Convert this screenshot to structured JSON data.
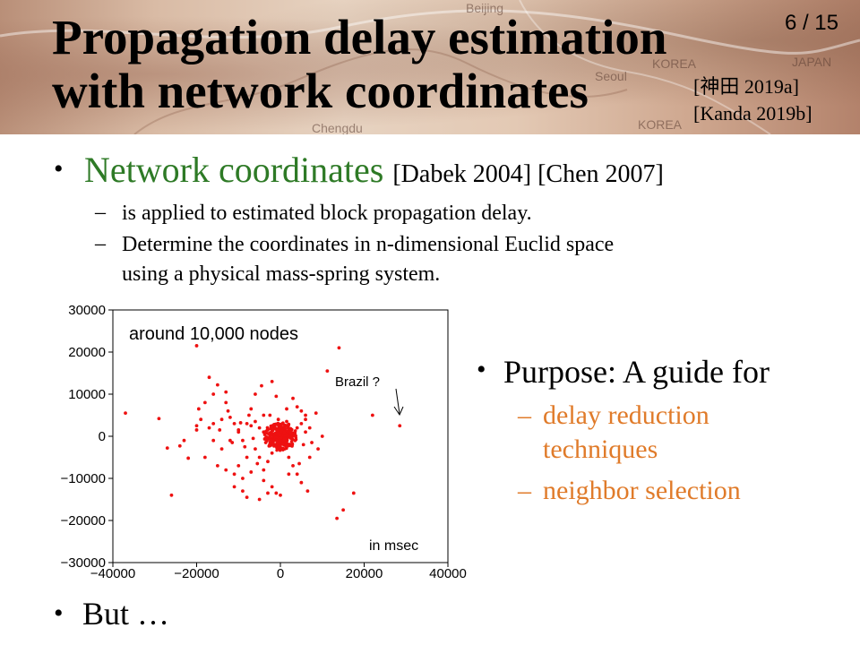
{
  "slide": {
    "title_line1": "Propagation delay estimation",
    "title_line2": "with network coordinates",
    "page_number": "6 / 15",
    "citation1": "[神田 2019a]",
    "citation2": "[Kanda 2019b]",
    "map_labels": [
      "Beijing",
      "KOREA",
      "Seoul",
      "JAPAN",
      "Chengdu",
      "KOREA"
    ]
  },
  "bullets": {
    "main_term": "Network coordinates",
    "main_refs": "[Dabek 2004] [Chen 2007]",
    "sub1": "is applied  to estimated block propagation  delay.",
    "sub2_line1": "Determine the coordinates  in n-dimensional  Euclid space",
    "sub2_line2": "using a physical  mass-spring  system.",
    "purpose": "Purpose: A guide for",
    "purpose_sub1_line1": "delay reduction",
    "purpose_sub1_line2": "techniques",
    "purpose_sub2": "neighbor selection",
    "but": "But …",
    "dash": "–",
    "bullet_dot": "•"
  },
  "chart_data": {
    "type": "scatter",
    "title": "",
    "xlabel": "",
    "ylabel": "",
    "xlim": [
      -40000,
      40000
    ],
    "ylim": [
      -30000,
      30000
    ],
    "xticks": [
      "−40000",
      "−20000",
      "0",
      "20000",
      "40000"
    ],
    "yticks": [
      "30000",
      "20000",
      "10000",
      "0",
      "−10000",
      "−20000",
      "−30000"
    ],
    "xtick_values": [
      -40000,
      -20000,
      0,
      20000,
      40000
    ],
    "ytick_values": [
      30000,
      20000,
      10000,
      0,
      -10000,
      -20000,
      -30000
    ],
    "color": "#ee1111",
    "grid": false,
    "annotations": {
      "nodes": "around 10,000 nodes",
      "brazil": "Brazil ?",
      "unit": "in msec"
    },
    "points": [
      [
        -20000,
        21500
      ],
      [
        14000,
        21000
      ],
      [
        11200,
        15500
      ],
      [
        -37000,
        5500
      ],
      [
        -29000,
        4200
      ],
      [
        -27000,
        -2800
      ],
      [
        -24000,
        -2300
      ],
      [
        -22000,
        -5200
      ],
      [
        -20000,
        1500
      ],
      [
        -19000,
        4000
      ],
      [
        -17000,
        14000
      ],
      [
        -15000,
        12200
      ],
      [
        -13000,
        10500
      ],
      [
        -12500,
        6000
      ],
      [
        -11000,
        3000
      ],
      [
        -10000,
        1000
      ],
      [
        -9000,
        -1000
      ],
      [
        -8000,
        3000
      ],
      [
        -7000,
        2500
      ],
      [
        -6000,
        3500
      ],
      [
        -5000,
        2000
      ],
      [
        -4000,
        1000
      ],
      [
        -3000,
        1500
      ],
      [
        -2000,
        2200
      ],
      [
        -1000,
        800
      ],
      [
        0,
        0
      ],
      [
        1000,
        500
      ],
      [
        2000,
        1000
      ],
      [
        3000,
        800
      ],
      [
        4000,
        2000
      ],
      [
        5000,
        3000
      ],
      [
        6000,
        4000
      ],
      [
        -6000,
        -3000
      ],
      [
        -5000,
        -5000
      ],
      [
        -4000,
        -8000
      ],
      [
        -3000,
        -6000
      ],
      [
        -2000,
        -4000
      ],
      [
        -1000,
        -2000
      ],
      [
        1000,
        -3000
      ],
      [
        2000,
        -5000
      ],
      [
        3000,
        -7000
      ],
      [
        4000,
        -9000
      ],
      [
        -2000,
        -12000
      ],
      [
        -3000,
        -13500
      ],
      [
        -5000,
        -15000
      ],
      [
        -8000,
        -14500
      ],
      [
        -11000,
        -12000
      ],
      [
        -13000,
        -8000
      ],
      [
        -15000,
        -7000
      ],
      [
        -18000,
        -5000
      ],
      [
        -26000,
        -14000
      ],
      [
        -23000,
        -1000
      ],
      [
        -10000,
        -7000
      ],
      [
        -9000,
        -10000
      ],
      [
        0,
        -14000
      ],
      [
        -1000,
        -13500
      ],
      [
        2000,
        -9000
      ],
      [
        5000,
        -11000
      ],
      [
        7000,
        -5000
      ],
      [
        7000,
        2000
      ],
      [
        6000,
        5000
      ],
      [
        5000,
        6000
      ],
      [
        4000,
        7000
      ],
      [
        3000,
        9000
      ],
      [
        -1000,
        9500
      ],
      [
        -6000,
        10000
      ],
      [
        -14000,
        4000
      ],
      [
        -16000,
        3000
      ],
      [
        -18000,
        8000
      ],
      [
        -20000,
        2500
      ],
      [
        17500,
        -13500
      ],
      [
        15000,
        -17500
      ],
      [
        13500,
        -19500
      ],
      [
        22000,
        5000
      ],
      [
        28500,
        2500
      ],
      [
        -12000,
        4500
      ],
      [
        -7500,
        5000
      ],
      [
        -4000,
        5000
      ],
      [
        1500,
        6500
      ],
      [
        2500,
        -2000
      ],
      [
        3500,
        -1000
      ],
      [
        -3500,
        -1500
      ],
      [
        -1500,
        -1000
      ],
      [
        500,
        3000
      ],
      [
        1500,
        3500
      ],
      [
        -500,
        4000
      ],
      [
        -2500,
        5000
      ],
      [
        -8500,
        -2500
      ],
      [
        -11500,
        -1500
      ],
      [
        -14000,
        -3000
      ],
      [
        -16000,
        -1000
      ],
      [
        -10000,
        1500
      ],
      [
        -6500,
        -500
      ],
      [
        -300,
        -600
      ],
      [
        800,
        -1200
      ],
      [
        -1200,
        -300
      ],
      [
        1200,
        200
      ],
      [
        300,
        1200
      ],
      [
        -800,
        1400
      ],
      [
        2300,
        1700
      ],
      [
        -2200,
        300
      ],
      [
        600,
        -1800
      ],
      [
        -1800,
        -1700
      ],
      [
        2800,
        -600
      ],
      [
        -2800,
        600
      ],
      [
        1800,
        2600
      ],
      [
        -1500,
        2800
      ],
      [
        400,
        2100
      ],
      [
        -400,
        -2400
      ],
      [
        1300,
        -2300
      ],
      [
        -2300,
        -900
      ],
      [
        2500,
        900
      ],
      [
        3300,
        300
      ],
      [
        -3300,
        -200
      ],
      [
        -600,
        600
      ],
      [
        900,
        900
      ],
      [
        -900,
        -900
      ],
      [
        100,
        -300
      ],
      [
        -100,
        300
      ],
      [
        -12000,
        -1000
      ],
      [
        -14500,
        1500
      ],
      [
        -17000,
        2000
      ],
      [
        -9500,
        3200
      ],
      [
        -8000,
        -5000
      ],
      [
        -5500,
        -6500
      ],
      [
        -7000,
        -8500
      ],
      [
        -11000,
        -9000
      ],
      [
        -9000,
        -13000
      ],
      [
        -4000,
        -10500
      ],
      [
        6500,
        -13000
      ],
      [
        9000,
        -3000
      ],
      [
        10000,
        0
      ],
      [
        8500,
        5500
      ],
      [
        -2000,
        13000
      ],
      [
        -4500,
        12000
      ],
      [
        -7000,
        6500
      ],
      [
        -13000,
        8000
      ],
      [
        -16000,
        10000
      ],
      [
        -19500,
        6500
      ],
      [
        4500,
        -6500
      ],
      [
        5500,
        -2000
      ],
      [
        6000,
        1000
      ],
      [
        7500,
        -1500
      ]
    ]
  }
}
